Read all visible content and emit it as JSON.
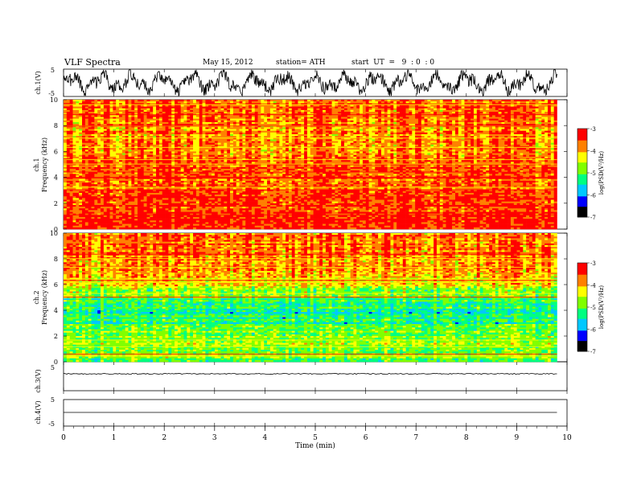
{
  "header": {
    "title": "VLF  Spectra",
    "date": "May 15, 2012",
    "station": "station= ATH",
    "start": "start  UT  =   9  : 0  : 0"
  },
  "chart_data": [
    {
      "type": "line",
      "panel": "ch1-waveform",
      "ylabel": "ch.1(V)",
      "ylim": [
        -5,
        5
      ],
      "yticks": [
        "5",
        "-5"
      ],
      "xlim": [
        0,
        10
      ],
      "series": [
        {
          "values_description_none": "",
          "color": "#000000",
          "amplitude_range": [
            -4.5,
            4.5
          ]
        }
      ]
    },
    {
      "type": "heatmap",
      "panel": "ch1-spectrogram",
      "ylabel_top": "ch.1",
      "ylabel": "Frequency  (kHz)",
      "ylim": [
        0,
        10
      ],
      "yticks": [
        "0",
        "2",
        "4",
        "6",
        "8",
        "10"
      ],
      "xlim": [
        0,
        9.8
      ],
      "colorbar": {
        "label": "log(PSD(V²/Hz)",
        "range": [
          -7,
          -3
        ],
        "ticks": [
          "-3",
          "-4",
          "-5",
          "-6",
          "-7"
        ]
      },
      "freq_profile_khz": [
        0,
        1,
        2,
        3,
        4,
        5,
        6,
        7,
        8,
        9,
        10
      ],
      "level_profile_logpsd": [
        -3.2,
        -3.3,
        -3.4,
        -3.6,
        -3.7,
        -3.5,
        -3.8,
        -3.8,
        -3.7,
        -3.6,
        -3.6
      ]
    },
    {
      "type": "heatmap",
      "panel": "ch2-spectrogram",
      "ylabel_top": "ch.2",
      "ylabel": "Frequency  (kHz)",
      "ylim": [
        0,
        10
      ],
      "yticks": [
        "0",
        "2",
        "4",
        "6",
        "8",
        "10"
      ],
      "xlim": [
        0,
        9.8
      ],
      "colorbar": {
        "label": "log(PSD(V²/Hz)",
        "range": [
          -7,
          -3
        ],
        "ticks": [
          "-3",
          "-4",
          "-5",
          "-6",
          "-7"
        ]
      },
      "freq_profile_khz": [
        0,
        1,
        2,
        3,
        4,
        5,
        6,
        7,
        8,
        9,
        10
      ],
      "level_profile_logpsd": [
        -4.9,
        -4.6,
        -4.7,
        -5.2,
        -5.3,
        -5.0,
        -4.4,
        -4.0,
        -3.8,
        -3.7,
        -3.7
      ]
    },
    {
      "type": "line",
      "panel": "ch3-waveform",
      "ylabel": "ch.3(V)",
      "ylim": [
        -5,
        5
      ],
      "yticks": [
        "5"
      ],
      "series": [
        {
          "level": 0
        }
      ]
    },
    {
      "type": "line",
      "panel": "ch4-waveform",
      "ylabel": "ch.4(V)",
      "ylim": [
        -5,
        5
      ],
      "yticks": [
        "5",
        "-5"
      ],
      "series": [
        {
          "level": 0
        }
      ]
    }
  ],
  "xaxis": {
    "xlabel": "Time  (min)",
    "xlim": [
      0,
      10
    ],
    "ticks": [
      "0",
      "1",
      "2",
      "3",
      "4",
      "5",
      "6",
      "7",
      "8",
      "9",
      "10"
    ]
  },
  "colormap": [
    "#000000",
    "#0000ff",
    "#00c8ff",
    "#00ff80",
    "#80ff00",
    "#ffff00",
    "#ff8000",
    "#ff0000",
    "#ffffff"
  ]
}
